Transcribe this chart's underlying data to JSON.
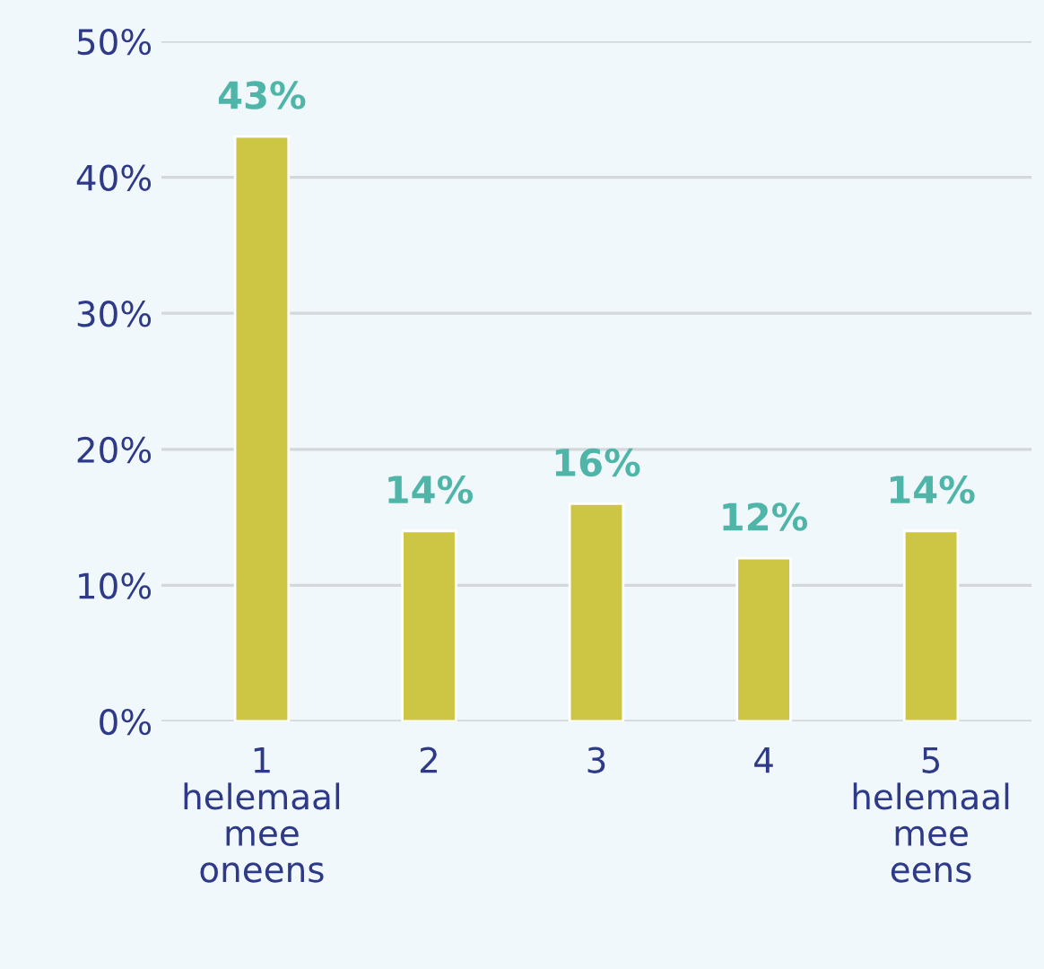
{
  "chart_data": {
    "type": "bar",
    "categories": [
      "1\nhelemaal\nmee\noneens",
      "2",
      "3",
      "4",
      "5\nhelemaal\nmee\neens"
    ],
    "values": [
      43,
      14,
      16,
      12,
      14
    ],
    "value_labels": [
      "43%",
      "14%",
      "16%",
      "12%",
      "14%"
    ],
    "color": "#cdc644",
    "ylim": [
      0,
      50
    ],
    "yticks": [
      {
        "value": 0,
        "label": "0%"
      },
      {
        "value": 10,
        "label": "10%"
      },
      {
        "value": 20,
        "label": "20%"
      },
      {
        "value": 30,
        "label": "30%"
      },
      {
        "value": 40,
        "label": "40%"
      },
      {
        "value": 50,
        "label": "50%"
      }
    ],
    "grid": "y",
    "legend": false
  }
}
